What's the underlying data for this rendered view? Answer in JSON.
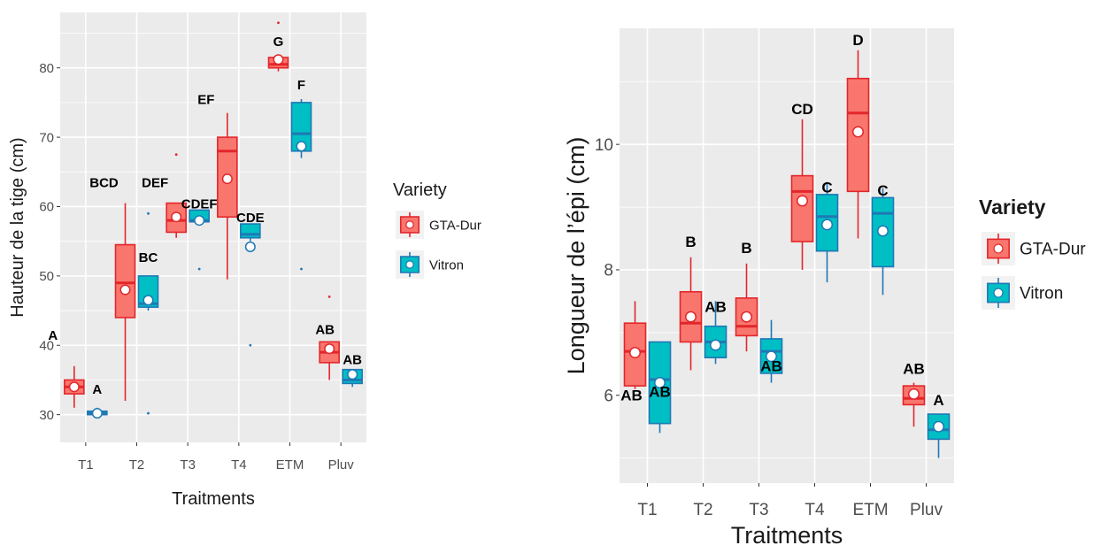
{
  "colors": {
    "panel_bg": "#EBEBEB",
    "grid": "#FFFFFF",
    "gta_fill": "#F8766D",
    "gta_line": "#E3262B",
    "vitron_fill": "#00BFC4",
    "vitron_line": "#1F78B4",
    "mean_point": "#FFFFFF",
    "axis_text": "#4D4D4D",
    "title_text": "#1A1A1A"
  },
  "chart_data": [
    {
      "type": "boxplot",
      "xlabel": "Traitments",
      "ylabel": "Hauteur de la tige (cm)",
      "ylim": [
        26,
        88
      ],
      "yticks": [
        30,
        40,
        50,
        60,
        70,
        80
      ],
      "grid": true,
      "legend_position": "right",
      "legend": {
        "title": "Variety",
        "entries": [
          "GTA-Dur",
          "Vitron"
        ]
      },
      "categories": [
        "T1",
        "T2",
        "T3",
        "T4",
        "ETM",
        "Pluv"
      ],
      "series": [
        {
          "name": "GTA-Dur",
          "color": "#F8766D",
          "boxes": [
            {
              "min": 31,
              "q1": 33,
              "median": 34,
              "q3": 35,
              "max": 37,
              "mean": 34,
              "outliers": [],
              "label": "A"
            },
            {
              "min": 32,
              "q1": 44,
              "median": 49,
              "q3": 54.5,
              "max": 60.5,
              "mean": 48,
              "outliers": [],
              "label": "BCD"
            },
            {
              "min": 55.5,
              "q1": 56.3,
              "median": 58,
              "q3": 60.5,
              "max": 60.5,
              "mean": 58.5,
              "outliers": [
                67.5
              ],
              "label": "DEF"
            },
            {
              "min": 49.5,
              "q1": 58.5,
              "median": 68,
              "q3": 70,
              "max": 73.5,
              "mean": 64,
              "outliers": [],
              "label": "EF"
            },
            {
              "min": 79.5,
              "q1": 80,
              "median": 80.5,
              "q3": 81.5,
              "max": 81.5,
              "mean": 81.2,
              "outliers": [
                86.5
              ],
              "label": "G"
            },
            {
              "min": 35,
              "q1": 37.5,
              "median": 39,
              "q3": 40.5,
              "max": 40.5,
              "mean": 39.5,
              "outliers": [
                47
              ],
              "label": "AB"
            }
          ]
        },
        {
          "name": "Vitron",
          "color": "#00BFC4",
          "boxes": [
            {
              "min": 29.5,
              "q1": 30,
              "median": 30.2,
              "q3": 30.5,
              "max": 31,
              "mean": 30.2,
              "outliers": [],
              "label": "A"
            },
            {
              "min": 45,
              "q1": 45.5,
              "median": 46,
              "q3": 50,
              "max": 50,
              "mean": 46.5,
              "outliers": [
                30.2,
                59
              ],
              "label": "BC"
            },
            {
              "min": 57.5,
              "q1": 57.8,
              "median": 58,
              "q3": 59.5,
              "max": 59.5,
              "mean": 58,
              "outliers": [
                51
              ],
              "label": "CDEF"
            },
            {
              "min": 55,
              "q1": 55.5,
              "median": 56,
              "q3": 57.5,
              "max": 57.5,
              "mean": 54.2,
              "outliers": [
                40
              ],
              "label": "CDE"
            },
            {
              "min": 67,
              "q1": 68,
              "median": 70.5,
              "q3": 75,
              "max": 75.5,
              "mean": 68.7,
              "outliers": [
                51
              ],
              "label": "F"
            },
            {
              "min": 34,
              "q1": 34.5,
              "median": 35,
              "q3": 36.5,
              "max": 36.5,
              "mean": 35.8,
              "outliers": [],
              "label": "AB"
            }
          ]
        }
      ]
    },
    {
      "type": "boxplot",
      "xlabel": "Traitments",
      "ylabel": "Longueur de l’épi (cm)",
      "ylim": [
        4.6,
        11.85
      ],
      "yticks": [
        6,
        8,
        10
      ],
      "grid": true,
      "legend_position": "right",
      "legend": {
        "title": "Variety",
        "entries": [
          "GTA-Dur",
          "Vitron"
        ]
      },
      "categories": [
        "T1",
        "T2",
        "T3",
        "T4",
        "ETM",
        "Pluv"
      ],
      "series": [
        {
          "name": "GTA-Dur",
          "color": "#F8766D",
          "boxes": [
            {
              "min": 6.1,
              "q1": 6.15,
              "median": 6.7,
              "q3": 7.15,
              "max": 7.5,
              "mean": 6.68,
              "outliers": [],
              "label": "AB"
            },
            {
              "min": 6.4,
              "q1": 6.85,
              "median": 7.15,
              "q3": 7.65,
              "max": 8.2,
              "mean": 7.25,
              "outliers": [],
              "label": "B"
            },
            {
              "min": 6.7,
              "q1": 6.95,
              "median": 7.1,
              "q3": 7.55,
              "max": 8.1,
              "mean": 7.25,
              "outliers": [],
              "label": "B"
            },
            {
              "min": 8,
              "q1": 8.45,
              "median": 9.25,
              "q3": 9.5,
              "max": 10.4,
              "mean": 9.1,
              "outliers": [],
              "label": "CD"
            },
            {
              "min": 8.5,
              "q1": 9.25,
              "median": 10.5,
              "q3": 11.05,
              "max": 11.5,
              "mean": 10.2,
              "outliers": [],
              "label": "D"
            },
            {
              "min": 5.5,
              "q1": 5.85,
              "median": 5.95,
              "q3": 6.15,
              "max": 6.2,
              "mean": 6.02,
              "outliers": [],
              "label": "AB"
            }
          ]
        },
        {
          "name": "Vitron",
          "color": "#00BFC4",
          "boxes": [
            {
              "min": 5.4,
              "q1": 5.55,
              "median": 6.25,
              "q3": 6.85,
              "max": 6.85,
              "mean": 6.2,
              "outliers": [],
              "label": "AB"
            },
            {
              "min": 6.5,
              "q1": 6.6,
              "median": 6.85,
              "q3": 7.1,
              "max": 7.5,
              "mean": 6.8,
              "outliers": [],
              "label": "AB"
            },
            {
              "min": 6.2,
              "q1": 6.35,
              "median": 6.7,
              "q3": 6.9,
              "max": 7.2,
              "mean": 6.62,
              "outliers": [],
              "label": "AB"
            },
            {
              "min": 7.8,
              "q1": 8.3,
              "median": 8.85,
              "q3": 9.2,
              "max": 9.4,
              "mean": 8.72,
              "outliers": [],
              "label": "C"
            },
            {
              "min": 7.6,
              "q1": 8.05,
              "median": 8.9,
              "q3": 9.15,
              "max": 9.3,
              "mean": 8.62,
              "outliers": [],
              "label": "C"
            },
            {
              "min": 5,
              "q1": 5.3,
              "median": 5.45,
              "q3": 5.7,
              "max": 5.7,
              "mean": 5.5,
              "outliers": [],
              "label": "A"
            }
          ]
        }
      ]
    }
  ]
}
